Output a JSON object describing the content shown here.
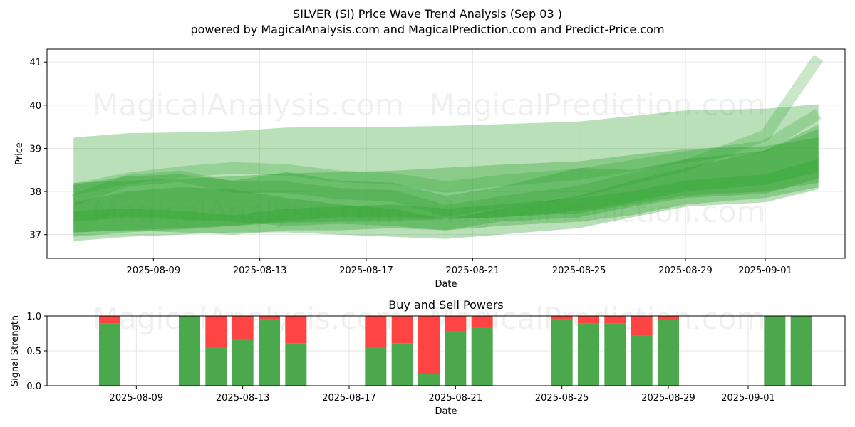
{
  "title": "SILVER (SI) Price Wave Trend Analysis (Sep 03 )",
  "subtitle": "powered by MagicalAnalysis.com and MagicalPrediction.com and Predict-Price.com",
  "watermarks": [
    "MagicalAnalysis.com",
    "MagicalPrediction.com"
  ],
  "colors": {
    "band": "#2ca02c",
    "buy": "#4ca84c",
    "sell": "#ff4444",
    "grid": "#e6e6e6"
  },
  "chart_data": [
    {
      "type": "area",
      "xlabel": "Date",
      "ylabel": "Price",
      "x_tick_labels": [
        "2025-08-09",
        "2025-08-13",
        "2025-08-17",
        "2025-08-21",
        "2025-08-25",
        "2025-08-29",
        "2025-09-01"
      ],
      "y_ticks": [
        37,
        38,
        39,
        40,
        41
      ],
      "ylim": [
        36.45,
        41.3
      ],
      "grid": true,
      "dates": [
        "2025-08-06",
        "2025-08-08",
        "2025-08-10",
        "2025-08-12",
        "2025-08-14",
        "2025-08-16",
        "2025-08-18",
        "2025-08-20",
        "2025-08-22",
        "2025-08-25",
        "2025-08-27",
        "2025-08-29",
        "2025-09-01",
        "2025-09-03"
      ],
      "bands": [
        {
          "upper": [
            39.25,
            39.35,
            39.37,
            39.4,
            39.48,
            39.5,
            39.5,
            39.52,
            39.56,
            39.62,
            39.75,
            39.88,
            39.92,
            40.02
          ],
          "lower": [
            36.95,
            37.05,
            37.12,
            37.2,
            37.32,
            37.4,
            37.4,
            37.38,
            37.4,
            37.55,
            37.75,
            38.0,
            38.15,
            38.45
          ]
        },
        {
          "upper": [
            38.2,
            38.25,
            38.3,
            38.35,
            38.42,
            38.45,
            38.48,
            38.55,
            38.62,
            38.7,
            38.85,
            38.98,
            39.05,
            39.25
          ],
          "lower": [
            37.05,
            37.1,
            37.15,
            37.2,
            37.28,
            37.3,
            37.32,
            37.35,
            37.4,
            37.5,
            37.7,
            37.9,
            38.0,
            38.2
          ]
        },
        {
          "upper": [
            38.05,
            38.3,
            38.45,
            38.55,
            38.5,
            38.35,
            38.3,
            38.1,
            38.25,
            38.4,
            38.6,
            38.8,
            39.05,
            39.8
          ]
        },
        {
          "upper": [
            38.15,
            38.35,
            38.4,
            38.25,
            38.45,
            38.25,
            38.2,
            37.9,
            38.1,
            38.55,
            38.5,
            38.75,
            38.95,
            39.45
          ],
          "lower": [
            37.3,
            37.4,
            37.35,
            37.3,
            37.2,
            37.25,
            37.2,
            37.1,
            37.3,
            37.4,
            37.65,
            37.85,
            37.95,
            38.3
          ]
        },
        {
          "upper": [
            37.75,
            38.0,
            38.1,
            38.05,
            37.85,
            37.7,
            37.6,
            37.35,
            37.6,
            37.9,
            38.25,
            38.55,
            38.95,
            39.55
          ],
          "lower": [
            36.85,
            36.95,
            37.0,
            37.05,
            37.05,
            37.0,
            36.95,
            36.9,
            37.0,
            37.15,
            37.4,
            37.65,
            37.75,
            38.05
          ]
        },
        {
          "upper": [
            37.8,
            38.25,
            38.35,
            38.1,
            38.1,
            37.95,
            37.9,
            37.55,
            37.75,
            38.0,
            38.3,
            38.6,
            39.3,
            41.1
          ]
        },
        {
          "upper": [
            37.55,
            37.6,
            37.55,
            37.45,
            37.6,
            37.65,
            37.7,
            37.6,
            37.7,
            37.85,
            38.0,
            38.25,
            38.4,
            38.75
          ],
          "lower": [
            37.05,
            37.1,
            37.05,
            37.0,
            37.1,
            37.1,
            37.15,
            37.1,
            37.2,
            37.3,
            37.45,
            37.7,
            37.85,
            38.1
          ]
        }
      ]
    },
    {
      "type": "bar",
      "title": "Buy and Sell Powers",
      "xlabel": "Date",
      "ylabel": "Signal Strength",
      "x_tick_labels": [
        "2025-08-09",
        "2025-08-13",
        "2025-08-17",
        "2025-08-21",
        "2025-08-25",
        "2025-08-29",
        "2025-09-01"
      ],
      "y_ticks": [
        "0.0",
        "0.5",
        "1.0"
      ],
      "ylim": [
        0,
        1
      ],
      "dates": [
        "2025-08-08",
        "2025-08-11",
        "2025-08-12",
        "2025-08-13",
        "2025-08-14",
        "2025-08-15",
        "2025-08-18",
        "2025-08-19",
        "2025-08-20",
        "2025-08-21",
        "2025-08-22",
        "2025-08-25",
        "2025-08-26",
        "2025-08-27",
        "2025-08-28",
        "2025-08-29",
        "2025-09-02",
        "2025-09-03"
      ],
      "series": [
        {
          "name": "Buy",
          "values": [
            0.89,
            1.0,
            0.56,
            0.67,
            0.95,
            0.61,
            0.56,
            0.61,
            0.17,
            0.78,
            0.84,
            0.95,
            0.89,
            0.89,
            0.72,
            0.94,
            1.0,
            1.0
          ]
        },
        {
          "name": "Sell",
          "values": [
            0.11,
            0.0,
            0.44,
            0.33,
            0.05,
            0.39,
            0.44,
            0.39,
            0.83,
            0.22,
            0.16,
            0.05,
            0.11,
            0.11,
            0.28,
            0.06,
            0.0,
            0.0
          ]
        }
      ]
    }
  ]
}
